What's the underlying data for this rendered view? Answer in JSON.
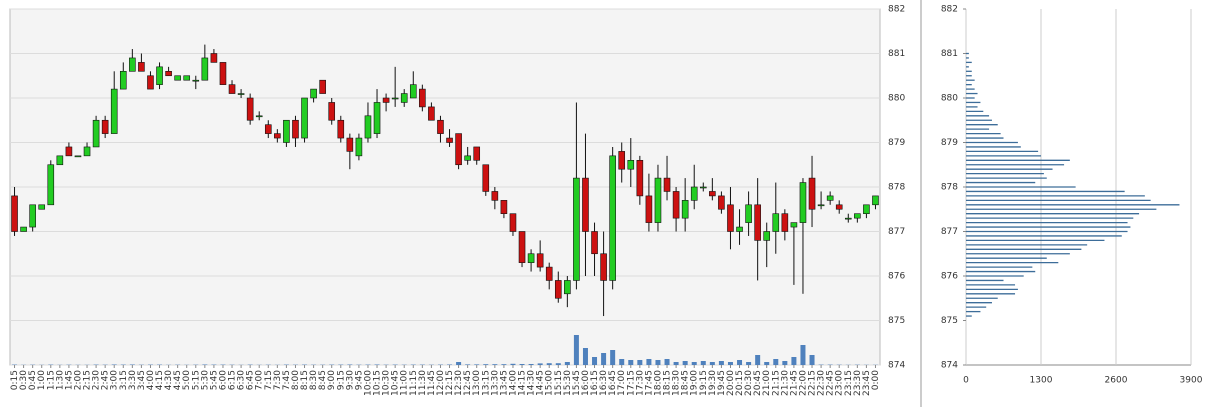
{
  "chart_data": [
    {
      "type": "candlestick",
      "categories": [
        "0:15",
        "0:30",
        "0:45",
        "1:00",
        "1:15",
        "1:30",
        "1:45",
        "2:00",
        "2:15",
        "2:30",
        "2:45",
        "3:00",
        "3:15",
        "3:30",
        "3:45",
        "4:00",
        "4:15",
        "4:30",
        "4:45",
        "5:00",
        "5:15",
        "5:30",
        "5:45",
        "6:00",
        "6:15",
        "6:30",
        "6:45",
        "7:00",
        "7:15",
        "7:30",
        "7:45",
        "8:00",
        "8:15",
        "8:30",
        "8:45",
        "9:00",
        "9:15",
        "9:30",
        "9:45",
        "10:00",
        "10:15",
        "10:30",
        "10:45",
        "11:00",
        "11:15",
        "11:30",
        "11:45",
        "12:00",
        "12:15",
        "12:30",
        "12:45",
        "13:00",
        "13:15",
        "13:30",
        "13:45",
        "14:00",
        "14:15",
        "14:30",
        "14:45",
        "15:00",
        "15:15",
        "15:30",
        "15:45",
        "16:00",
        "16:15",
        "16:30",
        "16:45",
        "17:00",
        "17:15",
        "17:30",
        "17:45",
        "18:00",
        "18:15",
        "18:30",
        "18:45",
        "19:00",
        "19:15",
        "19:30",
        "19:45",
        "20:00",
        "20:15",
        "20:30",
        "20:45",
        "21:00",
        "21:15",
        "21:30",
        "21:45",
        "22:00",
        "22:15",
        "22:30",
        "22:45",
        "23:00",
        "23:15",
        "23:30",
        "23:45",
        "0:00"
      ],
      "open": [
        877.8,
        877.0,
        877.1,
        877.5,
        877.6,
        878.5,
        878.9,
        878.7,
        878.7,
        878.9,
        879.5,
        879.2,
        880.2,
        880.6,
        880.8,
        880.5,
        880.3,
        880.6,
        880.4,
        880.4,
        880.4,
        880.4,
        881.0,
        880.8,
        880.3,
        880.1,
        880.0,
        879.6,
        879.4,
        879.2,
        879.0,
        879.5,
        879.1,
        880.0,
        880.4,
        879.9,
        879.5,
        879.1,
        878.7,
        879.1,
        879.2,
        880.0,
        880.0,
        879.9,
        880.0,
        880.2,
        879.8,
        879.5,
        879.1,
        879.2,
        878.6,
        878.9,
        878.5,
        877.9,
        877.7,
        877.4,
        877.0,
        876.3,
        876.5,
        876.2,
        875.9,
        875.6,
        875.9,
        878.2,
        877.0,
        876.5,
        875.9,
        878.8,
        878.4,
        878.6,
        877.8,
        877.2,
        878.2,
        877.9,
        877.3,
        877.7,
        878.0,
        877.9,
        877.8,
        877.6,
        877.0,
        877.2,
        877.6,
        876.8,
        877.0,
        877.4,
        877.1,
        877.2,
        878.2,
        877.6,
        877.7,
        877.6,
        877.3,
        877.3,
        877.4,
        877.6
      ],
      "high": [
        878.0,
        877.1,
        877.6,
        877.6,
        878.6,
        878.7,
        879.0,
        878.7,
        879.0,
        879.6,
        879.6,
        880.6,
        880.8,
        881.1,
        881.0,
        880.6,
        880.8,
        880.7,
        880.5,
        880.5,
        880.5,
        881.2,
        881.1,
        880.8,
        880.4,
        880.2,
        880.1,
        879.7,
        879.5,
        879.3,
        879.5,
        879.6,
        880.0,
        880.2,
        880.4,
        880.0,
        879.6,
        879.2,
        879.2,
        879.9,
        880.2,
        880.1,
        880.7,
        880.2,
        880.6,
        880.3,
        879.9,
        879.6,
        879.3,
        879.2,
        878.9,
        878.9,
        878.5,
        878.0,
        877.7,
        877.4,
        877.0,
        876.6,
        876.8,
        876.3,
        876.1,
        876.0,
        879.9,
        879.2,
        877.2,
        877.0,
        878.9,
        879.0,
        879.1,
        878.7,
        878.3,
        878.5,
        878.7,
        878.0,
        878.2,
        878.5,
        878.1,
        878.2,
        877.9,
        878.0,
        877.5,
        877.9,
        878.2,
        877.2,
        878.1,
        877.5,
        877.2,
        878.2,
        878.7,
        877.9,
        877.9,
        877.7,
        877.4,
        877.4,
        877.6,
        877.8
      ],
      "low": [
        876.9,
        877.0,
        877.0,
        877.5,
        877.6,
        878.5,
        878.7,
        878.7,
        878.7,
        878.9,
        879.1,
        879.2,
        880.2,
        880.6,
        880.6,
        880.2,
        880.2,
        880.5,
        880.4,
        880.4,
        880.2,
        880.4,
        880.8,
        880.3,
        880.1,
        880.0,
        879.4,
        879.5,
        879.1,
        879.0,
        878.9,
        878.9,
        879.0,
        879.9,
        880.1,
        879.4,
        879.0,
        878.4,
        878.6,
        879.0,
        879.1,
        879.7,
        879.8,
        879.8,
        880.0,
        879.7,
        879.5,
        879.0,
        878.9,
        878.4,
        878.5,
        878.5,
        877.8,
        877.5,
        877.3,
        876.9,
        876.2,
        876.1,
        876.1,
        875.7,
        875.4,
        875.3,
        875.7,
        876.0,
        876.0,
        875.1,
        875.7,
        878.1,
        878.0,
        877.6,
        877.0,
        877.0,
        877.7,
        877.0,
        877.0,
        877.5,
        877.9,
        877.7,
        877.4,
        876.6,
        876.7,
        876.9,
        875.9,
        876.2,
        876.5,
        876.8,
        875.8,
        875.6,
        877.1,
        877.5,
        877.6,
        877.4,
        877.2,
        877.2,
        877.3,
        877.5
      ],
      "close": [
        877.0,
        877.1,
        877.6,
        877.6,
        878.5,
        878.7,
        878.7,
        878.7,
        878.9,
        879.5,
        879.2,
        880.2,
        880.6,
        880.9,
        880.6,
        880.2,
        880.7,
        880.5,
        880.5,
        880.5,
        880.4,
        880.9,
        880.8,
        880.3,
        880.1,
        880.1,
        879.5,
        879.6,
        879.2,
        879.1,
        879.5,
        879.1,
        880.0,
        880.2,
        880.1,
        879.5,
        879.1,
        878.8,
        879.1,
        879.6,
        879.9,
        879.9,
        880.0,
        880.1,
        880.3,
        879.8,
        879.5,
        879.2,
        879.0,
        878.5,
        878.7,
        878.6,
        877.9,
        877.7,
        877.4,
        877.0,
        876.3,
        876.5,
        876.2,
        875.9,
        875.5,
        875.9,
        878.2,
        877.0,
        876.5,
        875.9,
        878.7,
        878.4,
        878.6,
        877.8,
        877.2,
        878.2,
        877.9,
        877.3,
        877.7,
        878.0,
        878.0,
        877.8,
        877.5,
        877.0,
        877.1,
        877.6,
        876.8,
        877.0,
        877.4,
        877.0,
        877.2,
        878.1,
        877.5,
        877.6,
        877.8,
        877.5,
        877.3,
        877.4,
        877.6,
        877.8
      ],
      "volume": [
        20,
        10,
        15,
        10,
        20,
        10,
        15,
        10,
        10,
        20,
        15,
        25,
        20,
        25,
        15,
        20,
        20,
        10,
        15,
        10,
        15,
        25,
        20,
        20,
        15,
        10,
        20,
        10,
        15,
        10,
        20,
        15,
        20,
        15,
        15,
        20,
        20,
        25,
        15,
        20,
        25,
        15,
        20,
        15,
        20,
        20,
        15,
        20,
        25,
        150,
        30,
        30,
        40,
        40,
        40,
        60,
        50,
        50,
        80,
        90,
        90,
        150,
        1500,
        850,
        400,
        600,
        750,
        300,
        250,
        250,
        300,
        250,
        300,
        150,
        200,
        150,
        200,
        150,
        200,
        150,
        250,
        150,
        500,
        150,
        300,
        200,
        400,
        1000,
        500,
        20,
        20,
        15,
        10,
        15,
        10,
        10
      ],
      "up_color": "#22cc22",
      "down_color": "#cc1111",
      "volume_color": "#4f81bd",
      "ylim": [
        874,
        882
      ],
      "yticks": [
        874,
        875,
        876,
        877,
        878,
        879,
        880,
        881,
        882
      ],
      "grid": true
    },
    {
      "type": "barh",
      "categories": [
        875.1,
        875.2,
        875.3,
        875.4,
        875.5,
        875.6,
        875.7,
        875.8,
        875.9,
        876.0,
        876.1,
        876.2,
        876.3,
        876.4,
        876.5,
        876.6,
        876.7,
        876.8,
        876.9,
        877.0,
        877.1,
        877.2,
        877.3,
        877.4,
        877.5,
        877.6,
        877.7,
        877.8,
        877.9,
        878.0,
        878.1,
        878.2,
        878.3,
        878.4,
        878.5,
        878.6,
        878.7,
        878.8,
        878.9,
        879.0,
        879.1,
        879.2,
        879.3,
        879.4,
        879.5,
        879.6,
        879.7,
        879.8,
        879.9,
        880.0,
        880.1,
        880.2,
        880.3,
        880.4,
        880.5,
        880.6,
        880.7,
        880.8,
        880.9,
        881.0
      ],
      "values": [
        100,
        250,
        350,
        450,
        550,
        850,
        900,
        850,
        650,
        1000,
        1200,
        1150,
        1600,
        1400,
        1800,
        2000,
        2100,
        2400,
        2700,
        2800,
        2850,
        2800,
        2900,
        3000,
        3300,
        3700,
        3200,
        3100,
        2750,
        1900,
        1200,
        1400,
        1350,
        1500,
        1700,
        1800,
        1300,
        1250,
        950,
        900,
        650,
        600,
        400,
        550,
        450,
        400,
        300,
        200,
        250,
        150,
        200,
        150,
        100,
        150,
        100,
        100,
        50,
        100,
        50,
        50
      ],
      "color": "#3d6d99",
      "xlim": [
        0,
        3900
      ],
      "xticks": [
        0,
        1300,
        2600,
        3900
      ],
      "ylim": [
        874,
        882
      ],
      "yticks": [
        874,
        875,
        876,
        877,
        878,
        879,
        880,
        881,
        882
      ],
      "grid": true
    }
  ]
}
